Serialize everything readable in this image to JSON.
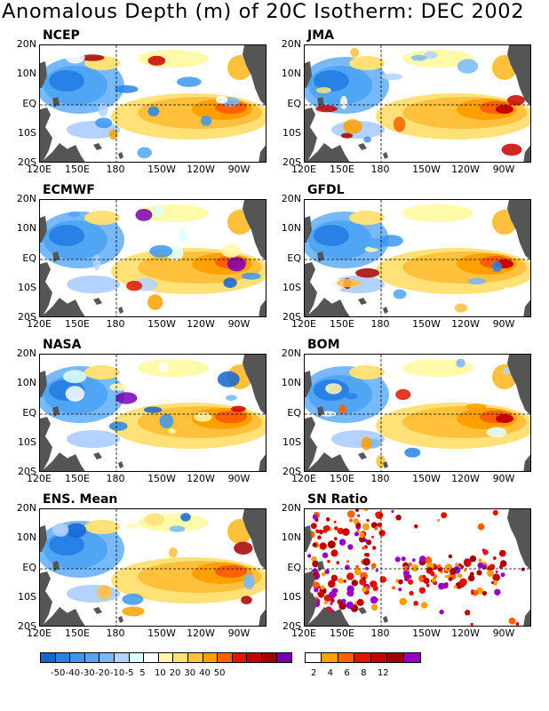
{
  "title": "Anomalous Depth (m) of 20C Isotherm: DEC 2002",
  "panels": [
    {
      "label": "NCEP"
    },
    {
      "label": "JMA"
    },
    {
      "label": "ECMWF"
    },
    {
      "label": "GFDL"
    },
    {
      "label": "NASA"
    },
    {
      "label": "BOM"
    },
    {
      "label": "ENS. Mean"
    },
    {
      "label": "SN Ratio"
    }
  ],
  "lat_ticks": [
    "20N",
    "10N",
    "EQ",
    "10S",
    "20S"
  ],
  "lon_ticks": [
    "120E",
    "150E",
    "180",
    "150W",
    "120W",
    "90W"
  ],
  "colorbar_depth": {
    "colors": [
      "#1464d2",
      "#2882e6",
      "#3c96f0",
      "#50a5f5",
      "#78b9fa",
      "#b4d2ff",
      "#e1ffff",
      "#ffffff",
      "#fffaaa",
      "#ffe178",
      "#ffc03c",
      "#ffa000",
      "#ff6000",
      "#e11400",
      "#c80000",
      "#a50000",
      "#7800b4"
    ],
    "labels": [
      "-50",
      "-40",
      "-30",
      "-20",
      "-10",
      "-5",
      "5",
      "10",
      "20",
      "30",
      "40",
      "50"
    ]
  },
  "colorbar_snr": {
    "colors": [
      "#ffffff",
      "#ffa000",
      "#ff6000",
      "#e11400",
      "#c80000",
      "#a50000",
      "#9600c8"
    ],
    "labels": [
      "2",
      "4",
      "6",
      "8",
      "12"
    ]
  }
}
